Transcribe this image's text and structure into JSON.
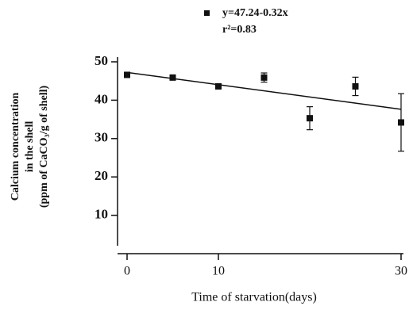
{
  "chart_data": {
    "type": "scatter",
    "x": [
      0,
      5,
      10,
      15,
      20,
      25,
      30
    ],
    "values": [
      46.6,
      45.9,
      43.6,
      45.9,
      35.3,
      43.6,
      34.2
    ],
    "errors": [
      0,
      0,
      0,
      1.2,
      3,
      2.4,
      7.5
    ],
    "color": "#111111",
    "fit": {
      "label": "y=47.24-0.32x",
      "intercept": 47.24,
      "slope": -0.32
    },
    "r2_label": "r²=0.83",
    "xlim": [
      0,
      30
    ],
    "xticks": [
      0,
      10,
      30
    ],
    "ylim": [
      0,
      50
    ],
    "yticks": [
      10,
      20,
      30,
      40,
      50
    ],
    "x_label": "Time of starvation(days)",
    "y_label": [
      "Calcium concentration",
      "in the shell",
      "(ppm of CaCO₃/g of shell)"
    ]
  }
}
